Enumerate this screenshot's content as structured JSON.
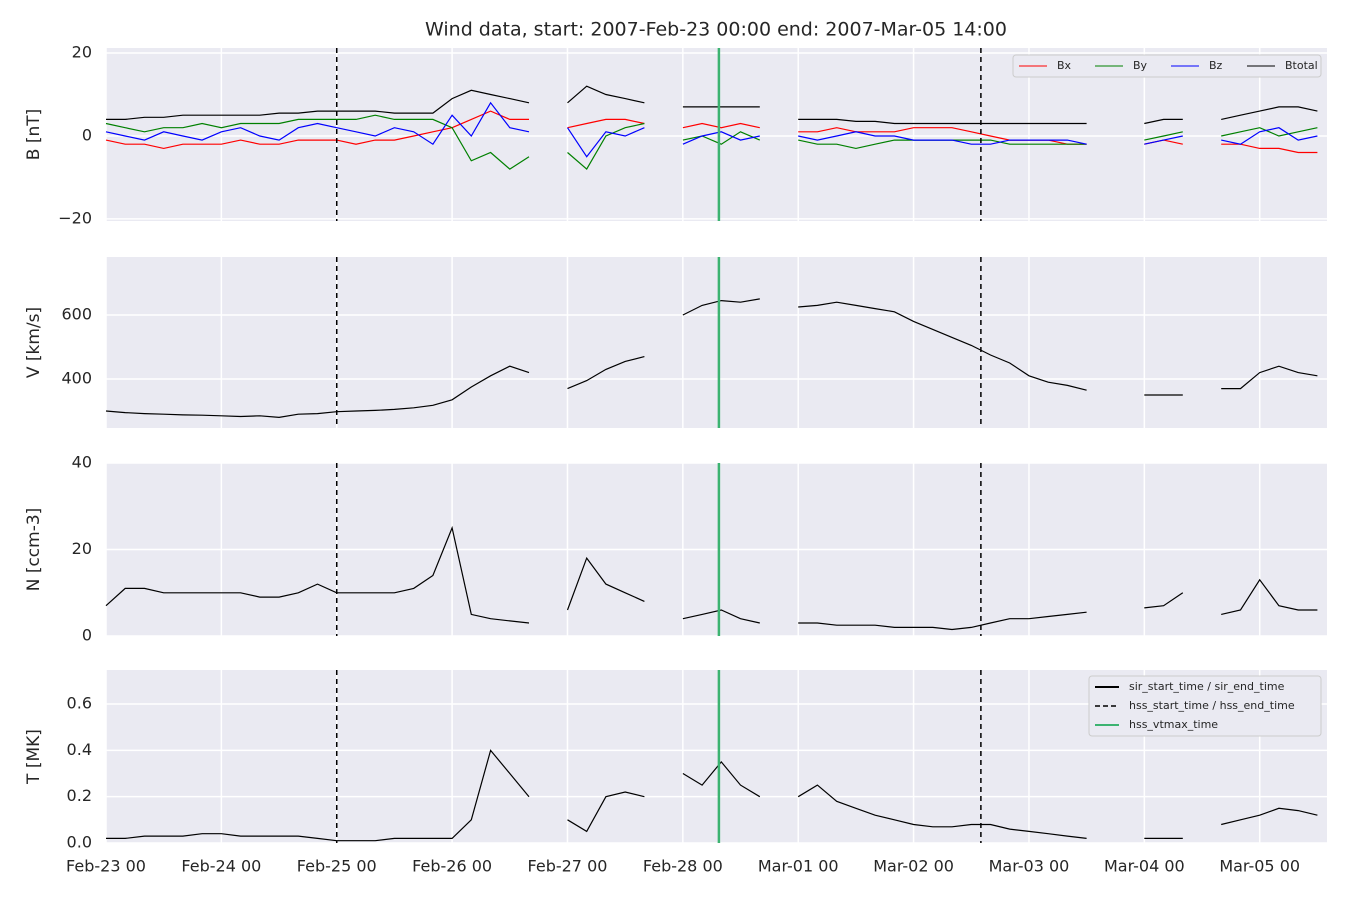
{
  "chart_data": {
    "type": "line",
    "title": "Wind data, start: 2007-Feb-23 00:00  end: 2007-Mar-05 14:00",
    "xlim": [
      "2007-02-23 00:00",
      "2007-03-05 14:00"
    ],
    "xticks": [
      {
        "value": "2007-02-23 00:00",
        "label": "Feb-23 00"
      },
      {
        "value": "2007-02-24 00:00",
        "label": "Feb-24 00"
      },
      {
        "value": "2007-02-25 00:00",
        "label": "Feb-25 00"
      },
      {
        "value": "2007-02-26 00:00",
        "label": "Feb-26 00"
      },
      {
        "value": "2007-02-27 00:00",
        "label": "Feb-27 00"
      },
      {
        "value": "2007-02-28 00:00",
        "label": "Feb-28 00"
      },
      {
        "value": "2007-03-01 00:00",
        "label": "Mar-01 00"
      },
      {
        "value": "2007-03-02 00:00",
        "label": "Mar-02 00"
      },
      {
        "value": "2007-03-03 00:00",
        "label": "Mar-03 00"
      },
      {
        "value": "2007-03-04 00:00",
        "label": "Mar-04 00"
      },
      {
        "value": "2007-03-05 00:00",
        "label": "Mar-05 00"
      }
    ],
    "grid": true,
    "x": [
      "2007-02-23 00:00",
      "2007-02-23 04:00",
      "2007-02-23 08:00",
      "2007-02-23 12:00",
      "2007-02-23 16:00",
      "2007-02-23 20:00",
      "2007-02-24 00:00",
      "2007-02-24 04:00",
      "2007-02-24 08:00",
      "2007-02-24 12:00",
      "2007-02-24 16:00",
      "2007-02-24 20:00",
      "2007-02-25 00:00",
      "2007-02-25 04:00",
      "2007-02-25 08:00",
      "2007-02-25 12:00",
      "2007-02-25 16:00",
      "2007-02-25 20:00",
      "2007-02-26 00:00",
      "2007-02-26 04:00",
      "2007-02-26 08:00",
      "2007-02-26 12:00",
      "2007-02-26 16:00",
      "2007-02-26 20:00",
      "2007-02-27 00:00",
      "2007-02-27 04:00",
      "2007-02-27 08:00",
      "2007-02-27 12:00",
      "2007-02-27 16:00",
      "2007-02-27 20:00",
      "2007-02-28 00:00",
      "2007-02-28 04:00",
      "2007-02-28 08:00",
      "2007-02-28 12:00",
      "2007-02-28 16:00",
      "2007-02-28 20:00",
      "2007-03-01 00:00",
      "2007-03-01 04:00",
      "2007-03-01 08:00",
      "2007-03-01 12:00",
      "2007-03-01 16:00",
      "2007-03-01 20:00",
      "2007-03-02 00:00",
      "2007-03-02 04:00",
      "2007-03-02 08:00",
      "2007-03-02 12:00",
      "2007-03-02 16:00",
      "2007-03-02 20:00",
      "2007-03-03 00:00",
      "2007-03-03 04:00",
      "2007-03-03 08:00",
      "2007-03-03 12:00",
      "2007-03-03 16:00",
      "2007-03-03 20:00",
      "2007-03-04 00:00",
      "2007-03-04 04:00",
      "2007-03-04 08:00",
      "2007-03-04 12:00",
      "2007-03-04 16:00",
      "2007-03-04 20:00",
      "2007-03-05 00:00",
      "2007-03-05 04:00",
      "2007-03-05 08:00",
      "2007-03-05 12:00"
    ],
    "panels": [
      {
        "ylabel": "B [nT]",
        "ylim": [
          -20.5,
          21.2
        ],
        "yticks": [
          {
            "value": -20,
            "label": "−20"
          },
          0,
          20
        ],
        "legend": "upper right",
        "series": [
          {
            "name": "Bx",
            "color": "#ff0000",
            "values": [
              -1,
              -2,
              -2,
              -3,
              -2,
              -2,
              -2,
              -1,
              -2,
              -2,
              -1,
              -1,
              -1,
              -2,
              -1,
              -1,
              0,
              1,
              2,
              4,
              6,
              4,
              4,
              null,
              2,
              3,
              4,
              4,
              3,
              null,
              2,
              3,
              2,
              3,
              2,
              null,
              1,
              1,
              2,
              1,
              1,
              1,
              2,
              2,
              2,
              1,
              0,
              -1,
              -1,
              -1,
              -2,
              -2,
              null,
              null,
              -2,
              -1,
              -2,
              null,
              -2,
              -2,
              -3,
              -3,
              -4,
              -4
            ]
          },
          {
            "name": "By",
            "color": "#008000",
            "values": [
              3,
              2,
              1,
              2,
              2,
              3,
              2,
              3,
              3,
              3,
              4,
              4,
              4,
              4,
              5,
              4,
              4,
              4,
              2,
              -6,
              -4,
              -8,
              -5,
              null,
              -4,
              -8,
              0,
              2,
              3,
              null,
              -1,
              0,
              -2,
              1,
              -1,
              null,
              -1,
              -2,
              -2,
              -3,
              -2,
              -1,
              -1,
              -1,
              -1,
              -1,
              -1,
              -2,
              -2,
              -2,
              -2,
              -2,
              null,
              null,
              -1,
              0,
              1,
              null,
              0,
              1,
              2,
              0,
              1,
              2
            ]
          },
          {
            "name": "Bz",
            "color": "#0000ff",
            "values": [
              1,
              0,
              -1,
              1,
              0,
              -1,
              1,
              2,
              0,
              -1,
              2,
              3,
              2,
              1,
              0,
              2,
              1,
              -2,
              5,
              0,
              8,
              2,
              1,
              null,
              2,
              -5,
              1,
              0,
              2,
              null,
              -2,
              0,
              1,
              -1,
              0,
              null,
              0,
              -1,
              0,
              1,
              0,
              0,
              -1,
              -1,
              -1,
              -2,
              -2,
              -1,
              -1,
              -1,
              -1,
              -2,
              null,
              null,
              -2,
              -1,
              0,
              null,
              -1,
              -2,
              1,
              2,
              -1,
              0
            ]
          },
          {
            "name": "Btotal",
            "color": "#000000",
            "values": [
              4,
              4,
              4.5,
              4.5,
              5,
              5,
              5,
              5,
              5,
              5.5,
              5.5,
              6,
              6,
              6,
              6,
              5.5,
              5.5,
              5.5,
              9,
              11,
              10,
              9,
              8,
              null,
              8,
              12,
              10,
              9,
              8,
              null,
              7,
              7,
              7,
              7,
              7,
              null,
              4,
              4,
              4,
              3.5,
              3.5,
              3,
              3,
              3,
              3,
              3,
              3,
              3,
              3,
              3,
              3,
              3,
              null,
              null,
              3,
              4,
              4,
              null,
              4,
              5,
              6,
              7,
              7,
              6
            ]
          }
        ]
      },
      {
        "ylabel": "V [km/s]",
        "ylim": [
          247,
          781
        ],
        "yticks": [
          400,
          600
        ],
        "series": [
          {
            "color": "#000000",
            "values": [
              300,
              295,
              292,
              290,
              288,
              287,
              285,
              283,
              285,
              280,
              290,
              292,
              298,
              300,
              302,
              305,
              310,
              318,
              335,
              375,
              410,
              440,
              420,
              null,
              370,
              395,
              430,
              455,
              470,
              null,
              600,
              630,
              645,
              640,
              650,
              null,
              625,
              630,
              640,
              630,
              620,
              610,
              580,
              555,
              530,
              505,
              475,
              450,
              410,
              390,
              380,
              365,
              null,
              null,
              350,
              350,
              350,
              null,
              370,
              370,
              420,
              440,
              420,
              410
            ]
          }
        ]
      },
      {
        "ylabel": "N [ccm-3]",
        "ylim": [
          0,
          40
        ],
        "yticks": [
          0,
          20,
          40
        ],
        "series": [
          {
            "color": "#000000",
            "values": [
              7,
              11,
              11,
              10,
              10,
              10,
              10,
              10,
              9,
              9,
              10,
              12,
              10,
              10,
              10,
              10,
              11,
              14,
              25,
              5,
              4,
              3.5,
              3,
              null,
              6,
              18,
              12,
              10,
              8,
              null,
              4,
              5,
              6,
              4,
              3,
              null,
              3,
              3,
              2.5,
              2.5,
              2.5,
              2,
              2,
              2,
              1.5,
              2,
              3,
              4,
              4,
              4.5,
              5,
              5.5,
              null,
              null,
              6.5,
              7,
              10,
              null,
              5,
              6,
              13,
              7,
              6,
              6
            ]
          }
        ]
      },
      {
        "ylabel": "T [MK]",
        "ylim": [
          0,
          0.747
        ],
        "yticks": [
          {
            "value": 0,
            "label": "0.0"
          },
          0.2,
          0.4,
          0.6
        ],
        "series": [
          {
            "color": "#000000",
            "values": [
              0.02,
              0.02,
              0.03,
              0.03,
              0.03,
              0.04,
              0.04,
              0.03,
              0.03,
              0.03,
              0.03,
              0.02,
              0.01,
              0.01,
              0.01,
              0.02,
              0.02,
              0.02,
              0.02,
              0.1,
              0.4,
              0.3,
              0.2,
              null,
              0.1,
              0.05,
              0.2,
              0.22,
              0.2,
              null,
              0.3,
              0.25,
              0.35,
              0.25,
              0.2,
              null,
              0.2,
              0.25,
              0.18,
              0.15,
              0.12,
              0.1,
              0.08,
              0.07,
              0.07,
              0.08,
              0.08,
              0.06,
              0.05,
              0.04,
              0.03,
              0.02,
              null,
              null,
              0.02,
              0.02,
              0.02,
              null,
              0.08,
              0.1,
              0.12,
              0.15,
              0.14,
              0.12
            ]
          }
        ]
      }
    ],
    "events_legend": "upper right",
    "events": [
      {
        "name": "sir_start_time / sir_end_time",
        "color": "#000000",
        "dashed": false,
        "x": []
      },
      {
        "name": "hss_start_time / hss_end_time",
        "color": "#000000",
        "dashed": true,
        "x": [
          "2007-02-25 00:00",
          "2007-03-02 14:00"
        ]
      },
      {
        "name": "hss_vtmax_time",
        "color": "#3cb371",
        "dashed": false,
        "x": [
          "2007-02-28 07:30"
        ]
      }
    ]
  }
}
